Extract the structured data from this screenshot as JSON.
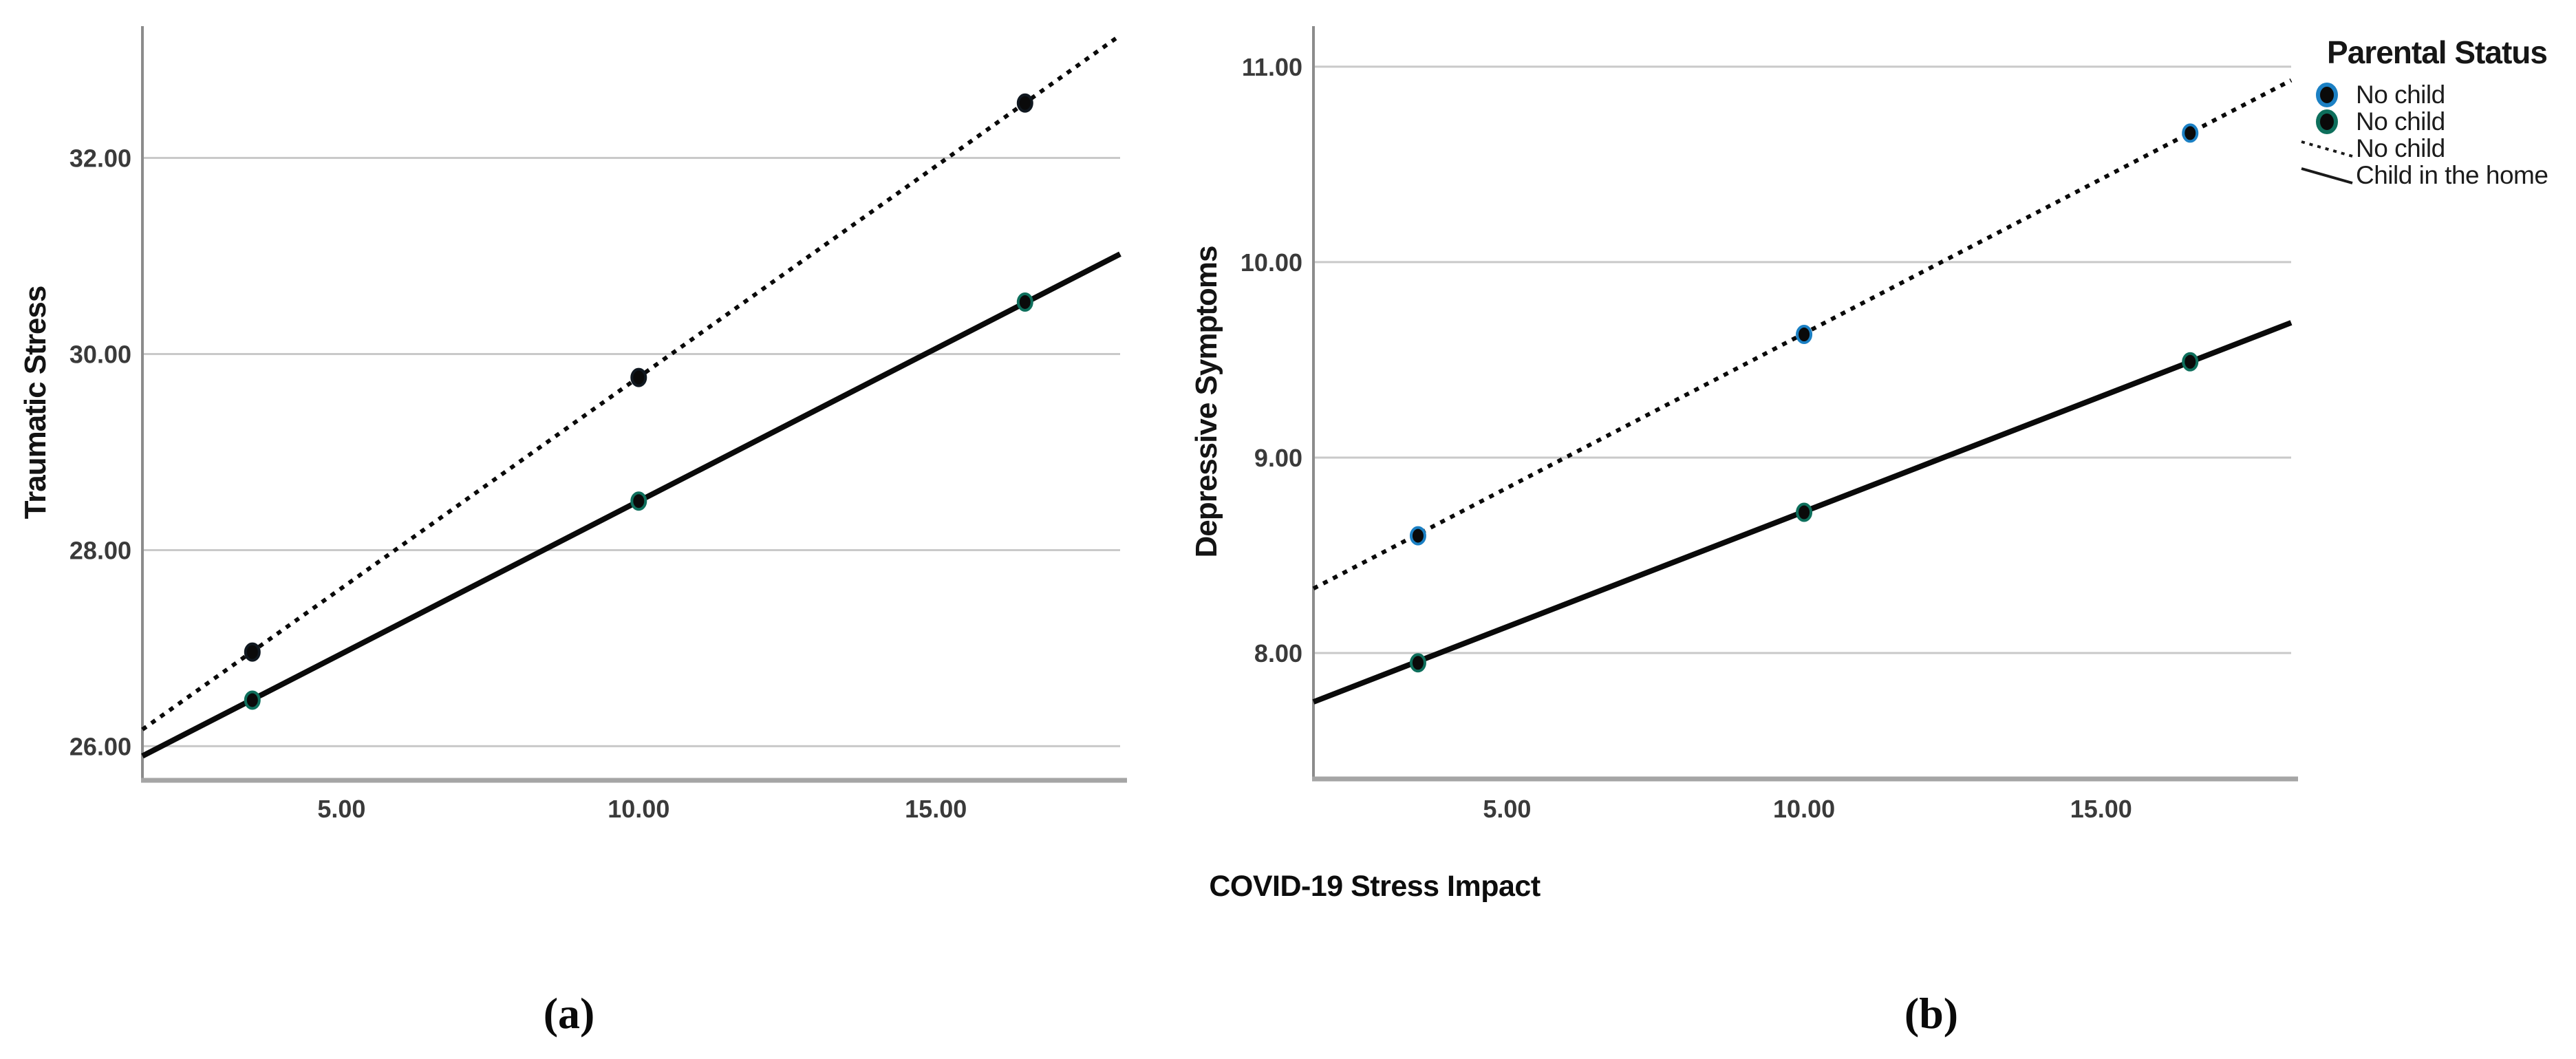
{
  "figure": {
    "x_axis_title": "COVID-19 Stress Impact",
    "captions": {
      "a": "(a)",
      "b": "(b)"
    },
    "background": "#ffffff"
  },
  "legend": {
    "title": "Parental Status",
    "items": [
      {
        "label": "No child",
        "type": "marker",
        "color": "#1b80c4"
      },
      {
        "label": "Child in the home",
        "type": "marker",
        "color": "#0e6f5c"
      },
      {
        "label": "No child",
        "type": "dotted-line",
        "color": "#1a1a1a"
      },
      {
        "label": "Child in the home",
        "type": "solid-line",
        "color": "#1a1a1a"
      }
    ]
  },
  "colors": {
    "gridline": "#c9c9c9",
    "y_axis": "#8c8c8c",
    "x_axis": "#a5a5a5",
    "line": "#0a0a0a",
    "marker_fill": "#0a0a0a",
    "no_child_accent": "#1b80c4",
    "child_in_home_accent": "#0e6f5c"
  },
  "chart_data": [
    {
      "id": "a",
      "type": "line",
      "ylabel": "Traumatic Stress",
      "yticks": [
        "26.00",
        "28.00",
        "30.00",
        "32.00"
      ],
      "xticks": [
        "5.00",
        "10.00",
        "15.00"
      ],
      "xlim": [
        1.65,
        18.1
      ],
      "ylim": [
        25.68,
        33.33
      ],
      "grid": true,
      "series": [
        {
          "name": "No child",
          "style": "dotted",
          "marker_color": "#101820",
          "line_y": [
            26.17,
            33.25
          ],
          "points": [
            [
              3.5,
              26.96
            ],
            [
              10.0,
              29.76
            ],
            [
              16.5,
              32.56
            ]
          ]
        },
        {
          "name": "Child in the home",
          "style": "solid",
          "marker_color": "#0e6f5c",
          "line_y": [
            25.9,
            31.02
          ],
          "points": [
            [
              3.5,
              26.47
            ],
            [
              10.0,
              28.5
            ],
            [
              16.5,
              30.53
            ]
          ]
        }
      ]
    },
    {
      "id": "b",
      "type": "line",
      "ylabel": "Depressive Symptoms",
      "yticks": [
        "8.00",
        "9.00",
        "10.00",
        "11.00"
      ],
      "xticks": [
        "5.00",
        "10.00",
        "15.00"
      ],
      "xlim": [
        1.74,
        18.2
      ],
      "ylim": [
        7.37,
        11.2
      ],
      "grid": true,
      "series": [
        {
          "name": "No child",
          "style": "dotted",
          "marker_color": "#1b80c4",
          "line_y": [
            8.33,
            10.93
          ],
          "points": [
            [
              3.5,
              8.6
            ],
            [
              10.0,
              9.63
            ],
            [
              16.5,
              10.66
            ]
          ]
        },
        {
          "name": "Child in the home",
          "style": "solid",
          "marker_color": "#0e6f5c",
          "line_y": [
            7.75,
            9.69
          ],
          "points": [
            [
              3.5,
              7.95
            ],
            [
              10.0,
              8.72
            ],
            [
              16.5,
              9.49
            ]
          ]
        }
      ]
    }
  ]
}
